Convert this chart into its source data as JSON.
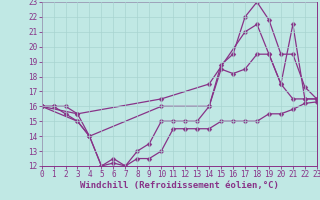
{
  "xlabel": "Windchill (Refroidissement éolien,°C)",
  "background_color": "#c0e8e4",
  "grid_color": "#a8d4d0",
  "line_color": "#883388",
  "xlim": [
    0,
    23
  ],
  "ylim": [
    12,
    23
  ],
  "yticks": [
    12,
    13,
    14,
    15,
    16,
    17,
    18,
    19,
    20,
    21,
    22,
    23
  ],
  "xticks": [
    0,
    1,
    2,
    3,
    4,
    5,
    6,
    7,
    8,
    9,
    10,
    11,
    12,
    13,
    14,
    15,
    16,
    17,
    18,
    19,
    20,
    21,
    22,
    23
  ],
  "lines": [
    {
      "x": [
        0,
        1,
        2,
        3,
        4,
        5,
        6,
        7,
        8,
        9,
        10,
        11,
        12,
        13,
        14,
        15,
        16,
        17,
        18,
        19,
        20,
        21,
        22,
        23
      ],
      "y": [
        16,
        16,
        16,
        15.5,
        14,
        12,
        12.2,
        12,
        12.5,
        12.5,
        13,
        14.5,
        14.5,
        14.5,
        14.5,
        15,
        15,
        15,
        15,
        15.5,
        15.5,
        15.8,
        16.2,
        16.3
      ]
    },
    {
      "x": [
        0,
        1,
        2,
        3,
        4,
        5,
        6,
        7,
        8,
        9,
        10,
        11,
        12,
        13,
        14,
        15,
        16,
        17,
        18,
        19,
        20,
        21,
        22,
        23
      ],
      "y": [
        16,
        16,
        15.5,
        15,
        14,
        12,
        12.5,
        12,
        13,
        13.5,
        15,
        15,
        15,
        15,
        16,
        18.5,
        18.2,
        18.5,
        19.5,
        19.5,
        17.5,
        16.5,
        16.5,
        16.5
      ]
    },
    {
      "x": [
        0,
        3,
        10,
        14,
        17,
        18,
        19,
        20,
        21,
        22,
        23
      ],
      "y": [
        16,
        15.5,
        16.5,
        17.5,
        21,
        21.5,
        19.5,
        17.5,
        21.5,
        16.5,
        16.5
      ]
    },
    {
      "x": [
        0,
        3,
        4,
        10,
        14,
        15,
        16,
        17,
        18,
        19,
        20,
        21,
        22,
        23
      ],
      "y": [
        16,
        15,
        14,
        16,
        16,
        18.8,
        19.5,
        22,
        23,
        21.8,
        19.5,
        19.5,
        17.3,
        16.5
      ]
    }
  ],
  "marker": "D",
  "markersize": 2.5,
  "linewidth": 0.9,
  "fontsize_ticks": 5.5,
  "fontsize_xlabel": 6.5
}
